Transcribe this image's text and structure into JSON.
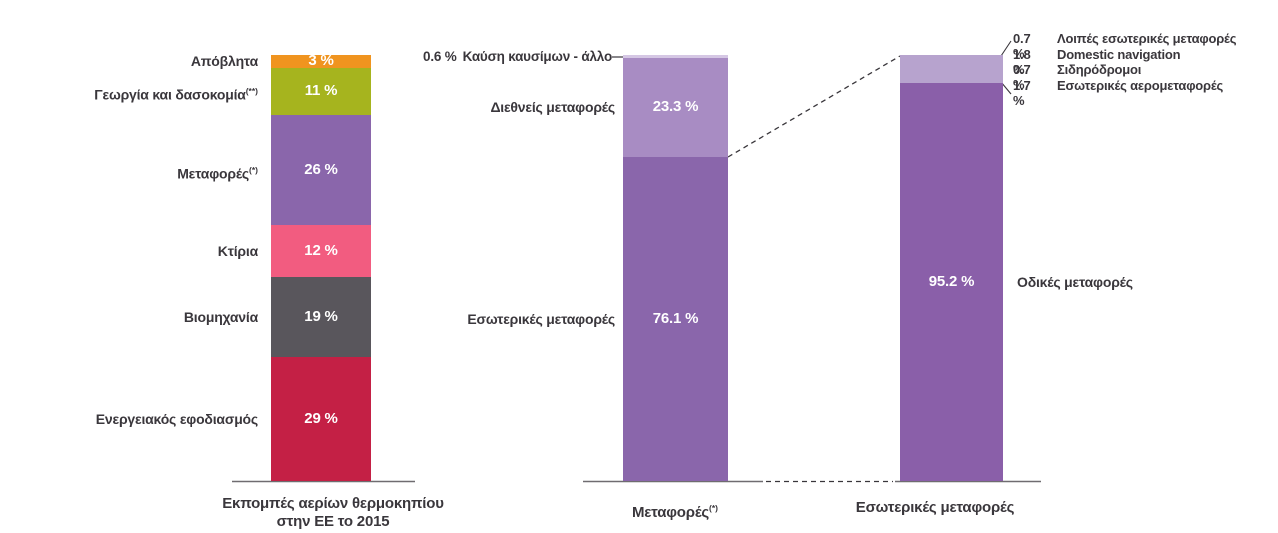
{
  "chart_data": {
    "type": "bar",
    "subtype": "stacked-percentage",
    "orientation": "vertical",
    "grid": false,
    "legend": false,
    "ylim": [
      0,
      100
    ],
    "style": {
      "axis_color": "#6f6c70",
      "leader_color": "#39363b",
      "text_color": "#3a373c",
      "inside_pct_color": "#ffffff"
    },
    "bars": [
      {
        "id": "eu-ghg-emissions-2015",
        "axis_label_lines": [
          "Εκπομπές αερίων θερμοκηπίου",
          "στην ΕΕ το 2015"
        ],
        "segments": [
          {
            "label": "Απόβλητα",
            "value": 3,
            "display": "3 %",
            "color": "#f0941f",
            "label_side": "left"
          },
          {
            "label": "Γεωργία και δασοκομία",
            "label_sup": "(**)",
            "value": 11,
            "display": "11 %",
            "color": "#a6b41e",
            "label_side": "left"
          },
          {
            "label": "Μεταφορές",
            "label_sup": "(*)",
            "value": 26,
            "display": "26 %",
            "color": "#8a66ab",
            "label_side": "left"
          },
          {
            "label": "Κτίρια",
            "value": 12,
            "display": "12 %",
            "color": "#f25c80",
            "label_side": "left"
          },
          {
            "label": "Βιομηχανία",
            "value": 19,
            "display": "19 %",
            "color": "#59565c",
            "label_side": "left"
          },
          {
            "label": "Ενεργειακός εφοδιασμός",
            "value": 29,
            "display": "29 %",
            "color": "#c42045",
            "label_side": "left"
          }
        ]
      },
      {
        "id": "transport-split",
        "axis_label": "Μεταφορές",
        "axis_label_sup": "(*)",
        "segments": [
          {
            "label": "Καύση καυσίμων - άλλο",
            "value": 0.6,
            "display": "0.6 %",
            "color": "#d5c7e4",
            "label_side": "callout-left",
            "show_inside": false
          },
          {
            "label": "Διεθνείς μεταφορές",
            "value": 23.3,
            "display": "23.3 %",
            "color": "#a88cc3",
            "label_side": "left"
          },
          {
            "label": "Εσωτερικές μεταφορές",
            "value": 76.1,
            "display": "76.1 %",
            "color": "#8a66ab",
            "label_side": "left"
          }
        ]
      },
      {
        "id": "domestic-transport-split",
        "axis_label": "Εσωτερικές μεταφορές",
        "segments": [
          {
            "label": "Λοιπές εσωτερικές μεταφορές / Domestic navigation / Σιδηρόδρομοι / Εσωτερικές αερομεταφορές",
            "value": 4.8,
            "draw_value": 6.5,
            "color": "#b7a3ce",
            "label_side": "none",
            "show_inside": false
          },
          {
            "label": "Οδικές μεταφορές",
            "value": 95.2,
            "draw_value": 93.5,
            "display": "95.2 %",
            "color": "#8a5fa9",
            "label_side": "right"
          }
        ],
        "callouts": [
          {
            "pct": "0.7 %",
            "label": "Λοιπές εσωτερικές μεταφορές"
          },
          {
            "pct": "1.8 %",
            "label": "Domestic navigation"
          },
          {
            "pct": "0.7 %",
            "label": "Σιδηρόδρομοι"
          },
          {
            "pct": "1.7 %",
            "label": "Εσωτερικές αερομεταφορές"
          }
        ]
      }
    ]
  }
}
